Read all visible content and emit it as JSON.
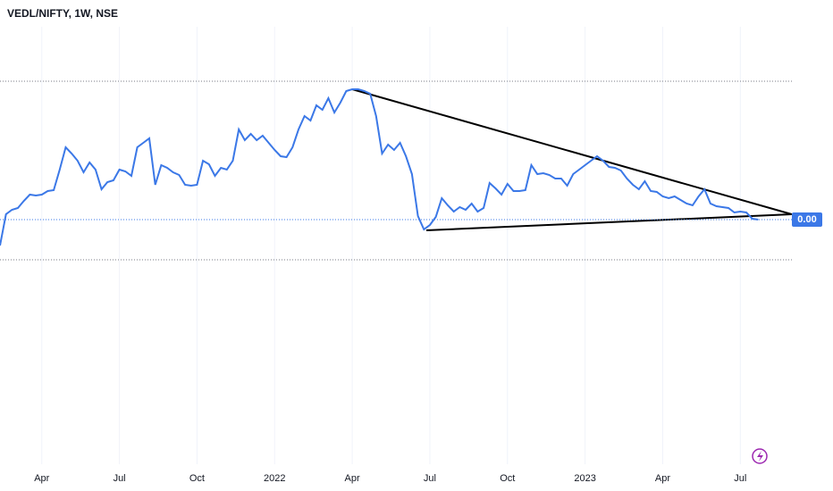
{
  "chart_data": {
    "type": "line",
    "title": "VEDL/NIFTY, 1W, NSE",
    "categories": [
      null,
      null,
      null,
      null,
      null,
      null,
      null,
      "Apr",
      null,
      null,
      null,
      null,
      null,
      null,
      null,
      null,
      null,
      null,
      null,
      null,
      "Jul",
      null,
      null,
      null,
      null,
      null,
      null,
      null,
      null,
      null,
      null,
      null,
      null,
      "Oct",
      null,
      null,
      null,
      null,
      null,
      null,
      null,
      null,
      null,
      null,
      null,
      null,
      "2022",
      null,
      null,
      null,
      null,
      null,
      null,
      null,
      null,
      null,
      null,
      null,
      null,
      "Apr",
      null,
      null,
      null,
      null,
      null,
      null,
      null,
      null,
      null,
      null,
      null,
      null,
      "Jul",
      null,
      null,
      null,
      null,
      null,
      null,
      null,
      null,
      null,
      null,
      null,
      null,
      "Oct",
      null,
      null,
      null,
      null,
      null,
      null,
      null,
      null,
      null,
      null,
      null,
      null,
      "2023",
      null,
      null,
      null,
      null,
      null,
      null,
      null,
      null,
      null,
      null,
      null,
      null,
      "Apr",
      null,
      null,
      null,
      null,
      null,
      null,
      null,
      null,
      null,
      null,
      null,
      null,
      "Jul",
      null,
      null,
      null
    ],
    "series": [
      {
        "color": "#3b78e7",
        "values": [
          0.0034,
          0.0041,
          0.0042,
          0.00424,
          0.0044,
          0.00454,
          0.00452,
          0.00454,
          0.00462,
          0.00464,
          0.0051,
          0.0056,
          0.00546,
          0.0053,
          0.00504,
          0.00526,
          0.0051,
          0.00466,
          0.00482,
          0.00486,
          0.0051,
          0.00506,
          0.00496,
          0.0056,
          0.0057,
          0.0058,
          0.00476,
          0.0052,
          0.00514,
          0.00504,
          0.00498,
          0.00476,
          0.00474,
          0.00476,
          0.0053,
          0.00522,
          0.00496,
          0.00514,
          0.0051,
          0.0053,
          0.006,
          0.00576,
          0.0059,
          0.00576,
          0.00586,
          0.0057,
          0.00554,
          0.0054,
          0.00538,
          0.0056,
          0.006,
          0.0063,
          0.0062,
          0.00654,
          0.00644,
          0.0067,
          0.00638,
          0.0066,
          0.00686,
          0.0069,
          0.0069,
          0.00686,
          0.0068,
          0.0063,
          0.00546,
          0.00566,
          0.00554,
          0.0057,
          0.0054,
          0.005,
          0.00406,
          0.00376,
          0.00386,
          0.00404,
          0.00446,
          0.0043,
          0.00416,
          0.00426,
          0.0042,
          0.00434,
          0.00416,
          0.00424,
          0.0048,
          0.00468,
          0.00454,
          0.00478,
          0.00462,
          0.00462,
          0.00464,
          0.0052,
          0.005,
          0.00502,
          0.00498,
          0.0049,
          0.0049,
          0.00474,
          0.005,
          0.0051,
          0.0052,
          0.0053,
          0.0054,
          0.0053,
          0.00516,
          0.00514,
          0.00508,
          0.0049,
          0.00476,
          0.00466,
          0.00484,
          0.00462,
          0.0046,
          0.0045,
          0.00446,
          0.0045,
          0.00442,
          0.00434,
          0.0043,
          0.0045,
          0.00466,
          0.00434,
          0.00428,
          0.00426,
          0.00424,
          0.00414,
          0.00416,
          0.00414,
          0.004,
          0.00398
        ],
        "value_labels": [
          null,
          null,
          null,
          null,
          null,
          null,
          null,
          null,
          null,
          null,
          null,
          null,
          null,
          null,
          null,
          null,
          null,
          null,
          null,
          null,
          null,
          null,
          null,
          null,
          null,
          null,
          null,
          null,
          null,
          null,
          null,
          null,
          null,
          null,
          null,
          null,
          null,
          null,
          null,
          null,
          null,
          null,
          null,
          null,
          null,
          null,
          null,
          null,
          null,
          null,
          null,
          null,
          null,
          null,
          null,
          null,
          null,
          null,
          null,
          null,
          null,
          null,
          null,
          null,
          null,
          null,
          null,
          null,
          null,
          null,
          null,
          null,
          null,
          null,
          null,
          null,
          null,
          null,
          null,
          null,
          null,
          null,
          null,
          null,
          null,
          null,
          null,
          null,
          null,
          null,
          null,
          null,
          null,
          null,
          null,
          null,
          null,
          null,
          null,
          null,
          null,
          null,
          null,
          null,
          null,
          null,
          null,
          null,
          null,
          null,
          null,
          null,
          null,
          null,
          null,
          null,
          null,
          null,
          null,
          null,
          null,
          null,
          null,
          null,
          null,
          null,
          null,
          "0.00"
        ]
      }
    ],
    "ylim": [
      -0.0015,
      0.0089
    ],
    "levels": [
      0.00708,
      0.00308
    ],
    "trendlines": [
      {
        "from": [
          59,
          0.0069
        ],
        "to": [
          132.6,
          0.0041
        ]
      },
      {
        "from": [
          71.4,
          0.00374
        ],
        "to": [
          132.6,
          0.0041
        ]
      }
    ]
  }
}
